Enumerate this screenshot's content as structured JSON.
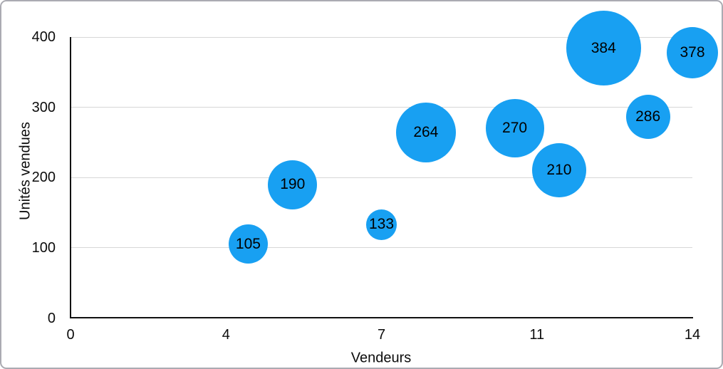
{
  "chart_data": {
    "type": "bubble",
    "title": "",
    "xlabel": "Vendeurs",
    "ylabel": "Unités vendues",
    "xlim": [
      0,
      14
    ],
    "ylim": [
      0,
      400
    ],
    "grid": "horizontal-only",
    "legend": "none",
    "bubble_color": "#18a0f2",
    "bubble_label_color": "#000000",
    "axis_line_color": "#111111",
    "gridline_color": "#d7d7d7",
    "x_ticks": [
      {
        "value": 0,
        "label": "0"
      },
      {
        "value": 3.5,
        "label": "4"
      },
      {
        "value": 7,
        "label": "7"
      },
      {
        "value": 10.5,
        "label": "11"
      },
      {
        "value": 14,
        "label": "14"
      }
    ],
    "y_ticks": [
      {
        "value": 0,
        "label": "0"
      },
      {
        "value": 100,
        "label": "100"
      },
      {
        "value": 200,
        "label": "200"
      },
      {
        "value": 300,
        "label": "300"
      },
      {
        "value": 400,
        "label": "400"
      }
    ],
    "points": [
      {
        "x": 4,
        "y": 105,
        "label": "105",
        "radius_px": 27.5
      },
      {
        "x": 5,
        "y": 190,
        "label": "190",
        "radius_px": 34.5
      },
      {
        "x": 7,
        "y": 133,
        "label": "133",
        "radius_px": 21.5
      },
      {
        "x": 8,
        "y": 264,
        "label": "264",
        "radius_px": 42
      },
      {
        "x": 10,
        "y": 270,
        "label": "270",
        "radius_px": 41
      },
      {
        "x": 11,
        "y": 210,
        "label": "210",
        "radius_px": 38
      },
      {
        "x": 12,
        "y": 384,
        "label": "384",
        "radius_px": 52.5
      },
      {
        "x": 13,
        "y": 286,
        "label": "286",
        "radius_px": 31
      },
      {
        "x": 14,
        "y": 378,
        "label": "378",
        "radius_px": 36
      }
    ]
  }
}
